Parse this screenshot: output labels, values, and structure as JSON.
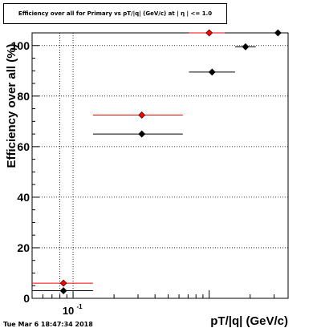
{
  "chart_data": {
    "type": "scatter",
    "title": "Efficiency over all for Primary vs pT/|q| (GeV/c) at | η | <= 1.0",
    "xlabel": "pT/|q| (GeV/c)",
    "ylabel": "Efficiency over all (%)",
    "x_scale": "log",
    "xlim": [
      0.05,
      3.8
    ],
    "ylim": [
      0,
      105
    ],
    "x_tick_labels": [
      {
        "value": 0.1,
        "label": "10",
        "exponent": "-1"
      }
    ],
    "y_ticks": [
      0,
      20,
      40,
      60,
      80,
      100
    ],
    "grid": true,
    "series": [
      {
        "color": "#000000",
        "points": [
          {
            "x": 0.085,
            "y": 3,
            "x_lo": 0.05,
            "x_hi": 0.14
          },
          {
            "x": 0.32,
            "y": 65,
            "x_lo": 0.14,
            "x_hi": 0.64
          },
          {
            "x": 1.05,
            "y": 89.5,
            "x_lo": 0.71,
            "x_hi": 1.55
          },
          {
            "x": 1.85,
            "y": 99.5,
            "x_lo": 1.55,
            "x_hi": 2.2
          },
          {
            "x": 3.2,
            "y": 105,
            "x_lo": 2.6,
            "x_hi": 3.8
          }
        ]
      },
      {
        "color": "#ff0000",
        "points": [
          {
            "x": 0.085,
            "y": 6,
            "x_lo": 0.05,
            "x_hi": 0.14
          },
          {
            "x": 0.32,
            "y": 72.5,
            "x_lo": 0.14,
            "x_hi": 0.64
          },
          {
            "x": 1.0,
            "y": 105,
            "x_lo": 0.71,
            "x_hi": 1.3
          }
        ]
      }
    ]
  },
  "timestamp": "Tue Mar  6 18:47:34 2018"
}
